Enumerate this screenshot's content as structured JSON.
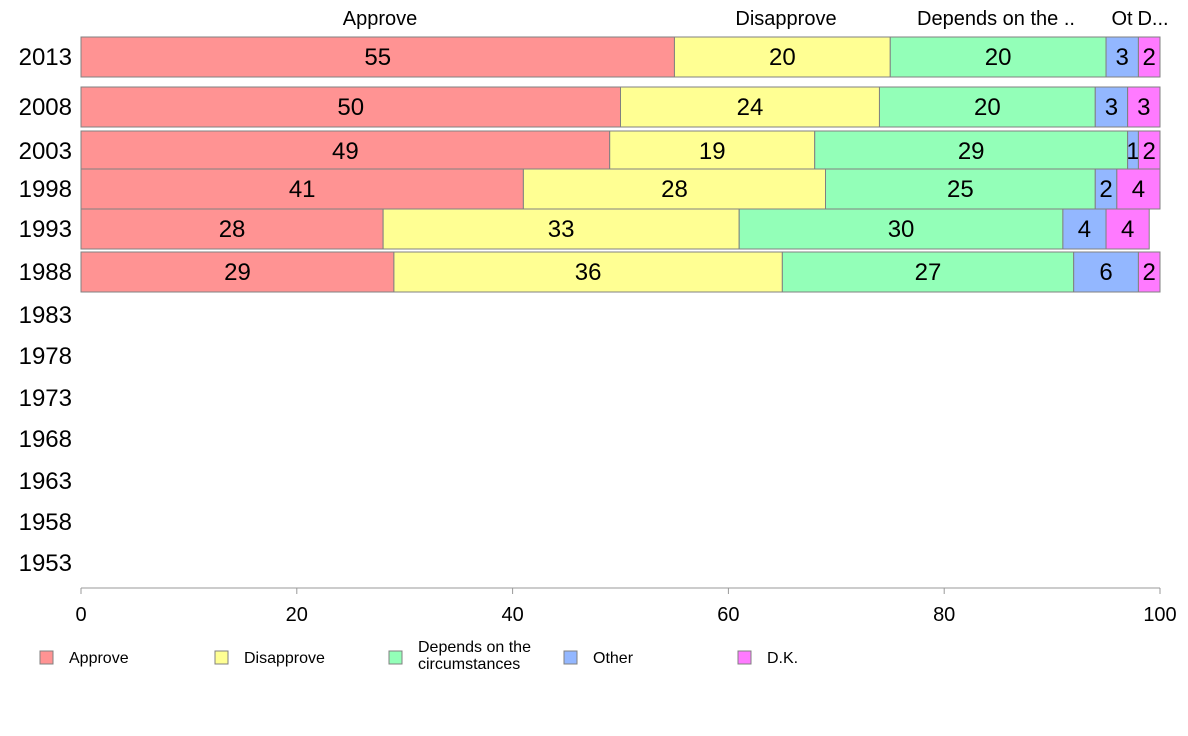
{
  "chart_data": {
    "type": "bar",
    "orientation": "horizontal",
    "stacked": true,
    "categories": [
      "2013",
      "2008",
      "2003",
      "1998",
      "1993",
      "1988",
      "1983",
      "1978",
      "1973",
      "1968",
      "1963",
      "1958",
      "1953"
    ],
    "series": [
      {
        "name": "Approve",
        "color": "#ff9393",
        "values": [
          55,
          50,
          49,
          41,
          28,
          29,
          null,
          null,
          null,
          null,
          null,
          null,
          null
        ]
      },
      {
        "name": "Disapprove",
        "color": "#ffff93",
        "values": [
          20,
          24,
          19,
          28,
          33,
          36,
          null,
          null,
          null,
          null,
          null,
          null,
          null
        ]
      },
      {
        "name": "Depends on the circumstances",
        "color": "#93ffb8",
        "values": [
          20,
          20,
          29,
          25,
          30,
          27,
          null,
          null,
          null,
          null,
          null,
          null,
          null
        ]
      },
      {
        "name": "Other",
        "color": "#93b7ff",
        "values": [
          3,
          3,
          1,
          2,
          4,
          6,
          null,
          null,
          null,
          null,
          null,
          null,
          null
        ]
      },
      {
        "name": "D.K.",
        "color": "#ff7aff",
        "values": [
          2,
          3,
          2,
          4,
          4,
          2,
          null,
          null,
          null,
          null,
          null,
          null,
          null
        ]
      }
    ],
    "column_headers": [
      "Approve",
      "Disapprove",
      "Depends on the ..",
      "Ot",
      "D..."
    ],
    "xlim": [
      0,
      100
    ],
    "x_ticks": [
      0,
      20,
      40,
      60,
      80,
      100
    ],
    "grid": false,
    "legend": {
      "position": "bottom",
      "items": [
        {
          "lines": [
            "Approve"
          ],
          "color": "#ff9393"
        },
        {
          "lines": [
            "Disapprove"
          ],
          "color": "#ffff93"
        },
        {
          "lines": [
            "Depends on the",
            "circumstances"
          ],
          "color": "#93ffb8"
        },
        {
          "lines": [
            "Other"
          ],
          "color": "#93b7ff"
        },
        {
          "lines": [
            "D.K."
          ],
          "color": "#ff7aff"
        }
      ]
    }
  }
}
